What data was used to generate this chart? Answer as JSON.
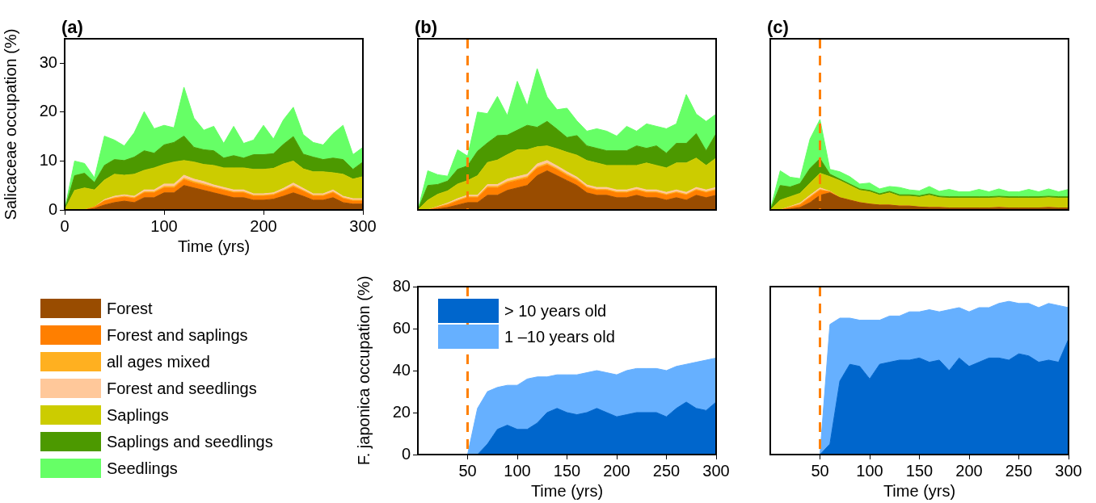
{
  "chart_data": [
    {
      "type": "area",
      "title": "(a)",
      "xlabel": "Time (yrs)",
      "ylabel": "Salicaceae occupation (%)",
      "stacked": true,
      "legend": "bottom",
      "x": [
        0,
        10,
        20,
        30,
        40,
        50,
        60,
        70,
        80,
        90,
        100,
        110,
        120,
        130,
        140,
        150,
        160,
        170,
        180,
        190,
        200,
        210,
        220,
        230,
        240,
        250,
        260,
        270,
        280,
        290,
        300
      ],
      "xlim": [
        0,
        300
      ],
      "ylim": [
        0,
        35
      ],
      "xticks": [
        0,
        100,
        200,
        300
      ],
      "yticks": [
        0,
        10,
        20,
        30
      ],
      "series": [
        {
          "name": "Forest",
          "color": "#994c00",
          "values": [
            0,
            0,
            0,
            0.3,
            1,
            1.5,
            1.8,
            1.5,
            2.5,
            2.5,
            3.5,
            3.5,
            5,
            4.5,
            4,
            3.5,
            3,
            2.5,
            2.5,
            2,
            2,
            2.2,
            2.8,
            3.5,
            2.8,
            2,
            2,
            2.5,
            1.5,
            1.2,
            1.2
          ]
        },
        {
          "name": "Forest and saplings",
          "color": "#ff7f00",
          "values": [
            0,
            0,
            0,
            0.3,
            0.8,
            0.8,
            0.8,
            0.8,
            1,
            1,
            1,
            1,
            1.2,
            1,
            1,
            1,
            1,
            1,
            1,
            0.8,
            0.8,
            0.8,
            1,
            1.2,
            1,
            0.8,
            0.8,
            1,
            0.8,
            0.6,
            0.6
          ]
        },
        {
          "name": "all ages mixed",
          "color": "#ffb020",
          "values": [
            0,
            0,
            0,
            0,
            0.1,
            0.2,
            0.2,
            0.2,
            0.2,
            0.2,
            0.3,
            0.3,
            0.3,
            0.3,
            0.3,
            0.2,
            0.2,
            0.2,
            0.2,
            0.2,
            0.2,
            0.2,
            0.2,
            0.3,
            0.2,
            0.2,
            0.2,
            0.2,
            0.2,
            0.2,
            0.2
          ]
        },
        {
          "name": "Forest and seedlings",
          "color": "#ffc89a",
          "values": [
            0,
            0,
            0,
            0,
            0.2,
            0.3,
            0.3,
            0.3,
            0.4,
            0.4,
            0.5,
            0.5,
            0.6,
            0.5,
            0.5,
            0.4,
            0.4,
            0.4,
            0.4,
            0.3,
            0.3,
            0.3,
            0.4,
            0.5,
            0.4,
            0.3,
            0.3,
            0.4,
            0.3,
            0.3,
            0.3
          ]
        },
        {
          "name": "Saplings",
          "color": "#cccc00",
          "values": [
            0,
            4,
            4.5,
            3.5,
            4,
            4.5,
            4,
            4.5,
            4,
            4.5,
            4,
            4.5,
            3,
            3.5,
            3.5,
            4,
            4,
            4.5,
            4.5,
            5,
            5,
            5,
            5,
            4.5,
            4,
            4.5,
            4.5,
            3.5,
            4.5,
            4,
            4.5
          ]
        },
        {
          "name": "Saplings and seedlings",
          "color": "#4c9900",
          "values": [
            0,
            3,
            3,
            1.5,
            3,
            3,
            3,
            3.5,
            4,
            3,
            4,
            4,
            5,
            3,
            3,
            3,
            2,
            2.5,
            2,
            3,
            3,
            3,
            4,
            5,
            3,
            3,
            2.5,
            3,
            3,
            2,
            3
          ]
        },
        {
          "name": "Seedlings",
          "color": "#66ff66",
          "values": [
            0,
            3,
            2,
            1,
            6,
            4,
            3,
            5,
            8,
            5,
            4,
            3,
            10,
            6,
            4,
            5,
            3,
            6,
            3,
            3,
            6,
            3,
            5,
            6,
            4,
            3,
            3,
            5,
            7,
            3,
            3
          ]
        }
      ]
    },
    {
      "type": "area",
      "title": "(b)",
      "stacked": true,
      "tick_labels": false,
      "x": [
        0,
        10,
        20,
        30,
        40,
        50,
        60,
        70,
        80,
        90,
        100,
        110,
        120,
        130,
        140,
        150,
        160,
        170,
        180,
        190,
        200,
        210,
        220,
        230,
        240,
        250,
        260,
        270,
        280,
        290,
        300
      ],
      "xlim": [
        0,
        300
      ],
      "ylim": [
        0,
        35
      ],
      "xticks": [
        0,
        100,
        200,
        300
      ],
      "yticks": [
        0,
        10,
        20,
        30
      ],
      "ref_lines": [
        {
          "axis": "x",
          "value": 50,
          "color": "#ff8000",
          "line_style": "dashed"
        }
      ],
      "series": [
        {
          "color": "#994c00",
          "values": [
            0,
            0,
            0.2,
            0.5,
            1,
            1.5,
            1.5,
            3,
            3,
            4,
            4.5,
            5,
            7,
            8,
            7,
            6,
            5,
            3.5,
            3,
            3,
            2.5,
            2.5,
            3,
            2.5,
            2.5,
            2,
            2.5,
            2,
            3,
            2.5,
            3
          ]
        },
        {
          "color": "#ff7f00",
          "values": [
            0,
            0,
            0.3,
            0.5,
            0.8,
            1,
            1,
            1.5,
            1.5,
            1.5,
            1.5,
            1.5,
            1.5,
            1.2,
            1.2,
            1,
            1,
            1,
            1,
            1,
            1,
            1,
            1,
            1,
            1,
            1,
            1,
            1,
            1,
            1,
            1
          ]
        },
        {
          "color": "#ffb020",
          "values": [
            0,
            0,
            0.1,
            0.2,
            0.2,
            0.2,
            0.2,
            0.3,
            0.3,
            0.3,
            0.3,
            0.3,
            0.3,
            0.3,
            0.3,
            0.3,
            0.3,
            0.2,
            0.2,
            0.2,
            0.2,
            0.2,
            0.2,
            0.2,
            0.2,
            0.2,
            0.2,
            0.2,
            0.2,
            0.2,
            0.2
          ]
        },
        {
          "color": "#ffc89a",
          "values": [
            0,
            0,
            0.1,
            0.2,
            0.3,
            0.3,
            0.3,
            0.4,
            0.4,
            0.5,
            0.5,
            0.5,
            0.6,
            0.6,
            0.5,
            0.5,
            0.4,
            0.4,
            0.4,
            0.4,
            0.4,
            0.4,
            0.4,
            0.4,
            0.4,
            0.4,
            0.4,
            0.4,
            0.4,
            0.4,
            0.4
          ]
        },
        {
          "color": "#cccc00",
          "values": [
            0,
            2,
            2.5,
            2.5,
            3,
            3,
            4,
            4.5,
            5,
            5,
            5.5,
            5,
            3.5,
            3,
            3.5,
            4,
            4.5,
            5,
            5,
            4.5,
            5,
            5,
            4.5,
            5.5,
            5,
            5,
            5.5,
            6,
            6,
            5,
            6
          ]
        },
        {
          "color": "#4c9900",
          "values": [
            0,
            3,
            2,
            2,
            3,
            3,
            5,
            4,
            5,
            4,
            4,
            5,
            4,
            5,
            4,
            3,
            4,
            3,
            3,
            3,
            3,
            3,
            4,
            3,
            4,
            3,
            4,
            4,
            5,
            3,
            5
          ]
        },
        {
          "color": "#66ff66",
          "values": [
            0,
            3,
            2,
            1,
            4,
            2,
            8,
            6,
            8,
            4,
            10,
            4,
            12,
            5,
            4,
            6,
            3,
            3,
            4,
            4,
            3,
            5,
            3,
            5,
            4,
            5,
            4,
            10,
            4,
            6,
            4
          ]
        }
      ]
    },
    {
      "type": "area",
      "title": "(c)",
      "stacked": true,
      "tick_labels": false,
      "x": [
        0,
        10,
        20,
        30,
        40,
        50,
        60,
        70,
        80,
        90,
        100,
        110,
        120,
        130,
        140,
        150,
        160,
        170,
        180,
        190,
        200,
        210,
        220,
        230,
        240,
        250,
        260,
        270,
        280,
        290,
        300
      ],
      "xlim": [
        0,
        300
      ],
      "ylim": [
        0,
        35
      ],
      "xticks": [
        0,
        100,
        200,
        300
      ],
      "yticks": [
        0,
        10,
        20,
        30
      ],
      "ref_lines": [
        {
          "axis": "x",
          "value": 50,
          "color": "#ff8000",
          "line_style": "dashed"
        }
      ],
      "series": [
        {
          "color": "#994c00",
          "values": [
            0,
            0,
            0.2,
            0.5,
            1.5,
            3,
            3.5,
            2.5,
            2,
            1.5,
            1.2,
            1,
            1,
            0.8,
            0.8,
            0.6,
            0.5,
            0.5,
            0.4,
            0.4,
            0.4,
            0.4,
            0.4,
            0.5,
            0.4,
            0.4,
            0.4,
            0.4,
            0.5,
            0.4,
            0.4
          ]
        },
        {
          "color": "#ff7f00",
          "values": [
            0,
            0,
            0.3,
            0.5,
            1,
            1,
            0.2,
            0,
            0,
            0,
            0,
            0,
            0,
            0,
            0,
            0,
            0,
            0,
            0,
            0,
            0,
            0,
            0,
            0,
            0,
            0,
            0,
            0,
            0,
            0,
            0
          ]
        },
        {
          "color": "#ffb020",
          "values": [
            0,
            0,
            0.1,
            0.2,
            0.2,
            0.2,
            0,
            0,
            0,
            0,
            0,
            0,
            0,
            0,
            0,
            0,
            0,
            0,
            0,
            0,
            0,
            0,
            0,
            0,
            0,
            0,
            0,
            0,
            0,
            0,
            0
          ]
        },
        {
          "color": "#ffc89a",
          "values": [
            0,
            0,
            0.1,
            0.2,
            0.3,
            0.3,
            0.1,
            0,
            0,
            0,
            0,
            0,
            0,
            0,
            0,
            0,
            0,
            0,
            0,
            0,
            0,
            0,
            0,
            0,
            0,
            0,
            0,
            0,
            0,
            0,
            0
          ]
        },
        {
          "color": "#cccc00",
          "values": [
            0,
            2,
            2,
            2,
            2.5,
            3,
            3,
            3.5,
            3,
            2.5,
            2.5,
            2,
            2.5,
            2,
            2,
            2,
            2.5,
            2,
            2,
            2,
            2,
            2,
            2,
            2,
            2,
            2,
            2,
            2,
            2,
            2,
            2
          ]
        },
        {
          "color": "#4c9900",
          "values": [
            0,
            3,
            2,
            2,
            3,
            3,
            0.5,
            0.3,
            0.3,
            0.3,
            0.3,
            0.3,
            0.3,
            0.3,
            0.3,
            0.3,
            0.3,
            0.3,
            0.3,
            0.3,
            0.3,
            0.3,
            0.3,
            0.3,
            0.3,
            0.3,
            0.3,
            0.3,
            0.3,
            0.3,
            0.3
          ]
        },
        {
          "color": "#66ff66",
          "values": [
            0,
            3,
            2,
            1,
            6,
            8,
            1,
            1.5,
            1.5,
            1,
            1.5,
            1,
            1,
            1.5,
            1,
            1,
            1.5,
            1,
            1.5,
            1,
            1,
            1.5,
            1,
            1.5,
            1,
            1,
            1.5,
            1,
            1.5,
            1,
            1.5
          ]
        }
      ]
    },
    {
      "type": "area",
      "xlabel": "Time (yrs)",
      "ylabel": "F. japonica occupation (%)",
      "stacked": true,
      "legend": "top left",
      "x": [
        0,
        10,
        20,
        30,
        40,
        50,
        60,
        70,
        80,
        90,
        100,
        110,
        120,
        130,
        140,
        150,
        160,
        170,
        180,
        190,
        200,
        210,
        220,
        230,
        240,
        250,
        260,
        270,
        280,
        290,
        300
      ],
      "xlim": [
        0,
        300
      ],
      "ylim": [
        0,
        80
      ],
      "xticks": [
        50,
        100,
        150,
        200,
        250,
        300
      ],
      "yticks": [
        0,
        20,
        40,
        60,
        80
      ],
      "ref_lines": [
        {
          "axis": "x",
          "value": 50,
          "color": "#ff8000",
          "line_style": "dashed"
        }
      ],
      "series": [
        {
          "name": "> 10 years old",
          "color": "#0066cc",
          "values": [
            0,
            0,
            0,
            0,
            0,
            0,
            0,
            5,
            12,
            14,
            12,
            12,
            15,
            20,
            22,
            20,
            19,
            20,
            22,
            20,
            18,
            19,
            20,
            20,
            20,
            18,
            22,
            25,
            22,
            21,
            25
          ]
        },
        {
          "name": "1 –10 years old",
          "color": "#66b0ff",
          "values": [
            0,
            0,
            0,
            0,
            0,
            0,
            22,
            25,
            20,
            19,
            21,
            24,
            22,
            17,
            16,
            18,
            19,
            19,
            18,
            19,
            20,
            21,
            21,
            21,
            21,
            22,
            20,
            18,
            22,
            24,
            21
          ]
        }
      ]
    },
    {
      "type": "area",
      "xlabel": "Time (yrs)",
      "stacked": true,
      "tick_labels": "x",
      "x": [
        0,
        10,
        20,
        30,
        40,
        50,
        60,
        70,
        80,
        90,
        100,
        110,
        120,
        130,
        140,
        150,
        160,
        170,
        180,
        190,
        200,
        210,
        220,
        230,
        240,
        250,
        260,
        270,
        280,
        290,
        300
      ],
      "xlim": [
        0,
        300
      ],
      "ylim": [
        0,
        80
      ],
      "xticks": [
        50,
        100,
        150,
        200,
        250,
        300
      ],
      "yticks": [
        0,
        20,
        40,
        60,
        80
      ],
      "ref_lines": [
        {
          "axis": "x",
          "value": 50,
          "color": "#ff8000",
          "line_style": "dashed"
        }
      ],
      "series": [
        {
          "color": "#0066cc",
          "values": [
            0,
            0,
            0,
            0,
            0,
            0,
            5,
            35,
            43,
            42,
            36,
            43,
            44,
            45,
            45,
            46,
            44,
            45,
            40,
            46,
            42,
            44,
            46,
            46,
            45,
            48,
            47,
            44,
            45,
            44,
            55
          ]
        },
        {
          "color": "#66b0ff",
          "values": [
            0,
            0,
            0,
            0,
            0,
            0,
            57,
            30,
            22,
            22,
            28,
            21,
            22,
            21,
            23,
            22,
            25,
            23,
            29,
            24,
            26,
            26,
            24,
            26,
            28,
            24,
            25,
            26,
            27,
            27,
            15
          ]
        }
      ]
    }
  ]
}
